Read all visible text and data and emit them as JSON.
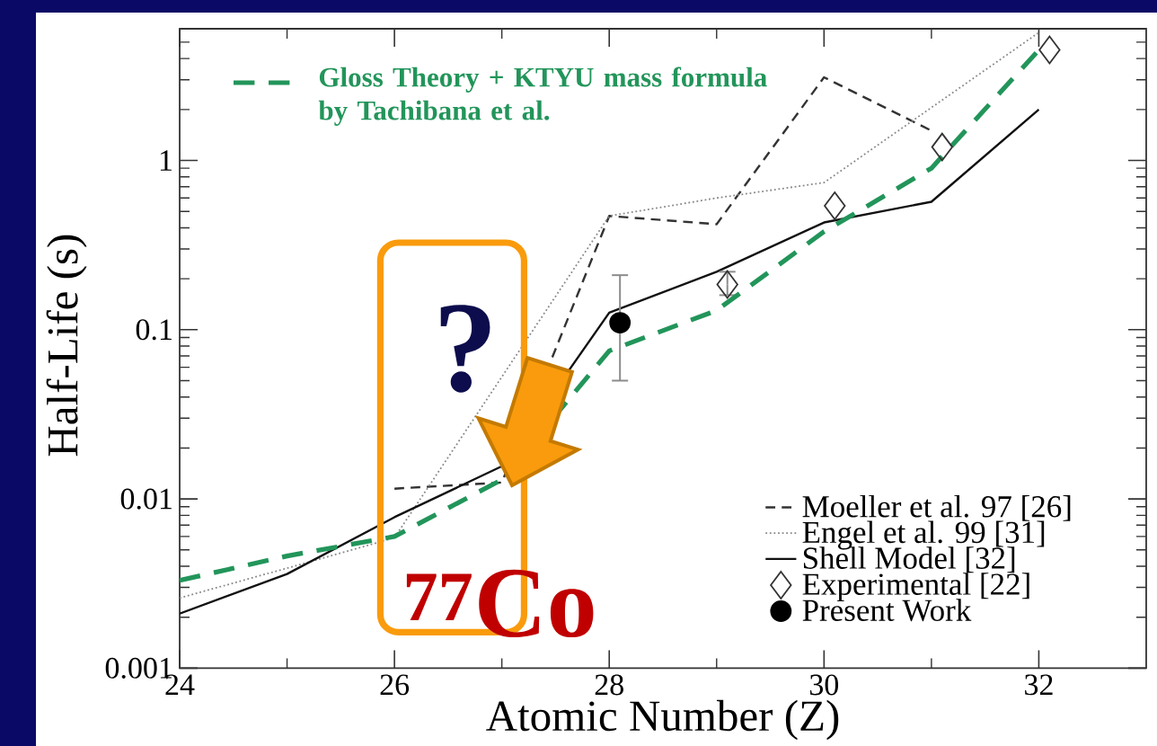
{
  "chart_data": {
    "type": "line",
    "xlabel": "Atomic Number (Z)",
    "ylabel": "Half-Life (s)",
    "xlim": [
      24,
      33
    ],
    "ylim": [
      0.001,
      6
    ],
    "log": true,
    "xticks": [
      24,
      {
        "value": 25,
        "label": null
      },
      26,
      {
        "value": 27,
        "label": null
      },
      28,
      {
        "value": 29,
        "label": null
      },
      30,
      {
        "value": 31,
        "label": null
      },
      32
    ],
    "yticks": [
      0.001,
      0.01,
      0.1,
      1
    ],
    "legend": "bottom right",
    "annotations": [
      "?",
      "$^{77}$Co",
      "Gloss Theory + KTYU mass formula by Tachibana et al."
    ],
    "series": [
      {
        "name": "Moeller et al. 97 [26]",
        "line_style": "dashed",
        "color": "#333333",
        "x": [
          26,
          27,
          28,
          29,
          30,
          31
        ],
        "values": [
          0.0115,
          0.0125,
          0.47,
          0.42,
          3.1,
          1.5
        ]
      },
      {
        "name": "Engel et al. 99 [31]",
        "line_style": "dotted",
        "color": "#888888",
        "x": [
          24,
          25,
          26,
          28,
          29,
          30,
          32
        ],
        "values": [
          0.0026,
          0.0039,
          0.0059,
          0.47,
          0.6,
          0.74,
          5.7
        ]
      },
      {
        "name": "Shell Model [32]",
        "line_style": "solid",
        "color": "#111111",
        "x": [
          24,
          25,
          26,
          27,
          28,
          29,
          30,
          31,
          32
        ],
        "values": [
          0.0021,
          0.0036,
          0.0078,
          0.0156,
          0.126,
          0.22,
          0.43,
          0.57,
          2.0
        ]
      },
      {
        "name": "Experimental [22]",
        "type": "scatter",
        "marker": "diamond",
        "color": "#333333",
        "x": [
          29.1,
          30.1,
          31.1,
          32.1
        ],
        "values": [
          0.185,
          0.54,
          1.2,
          4.5
        ],
        "errors": [
          [
            0.16,
            0.22
          ],
          null,
          null,
          null
        ]
      },
      {
        "name": "Present Work",
        "type": "scatter",
        "marker": "circle",
        "color": "#000000",
        "x": [
          28.1
        ],
        "values": [
          0.11
        ],
        "errors": [
          [
            0.05,
            0.21
          ]
        ]
      },
      {
        "line_style": "dashed",
        "color": "#22955A",
        "x": [
          24,
          25,
          26,
          27,
          28,
          29,
          30,
          31,
          32
        ],
        "values": [
          0.0033,
          0.0046,
          0.006,
          0.013,
          0.075,
          0.13,
          0.38,
          0.9,
          4.5
        ]
      }
    ]
  }
}
